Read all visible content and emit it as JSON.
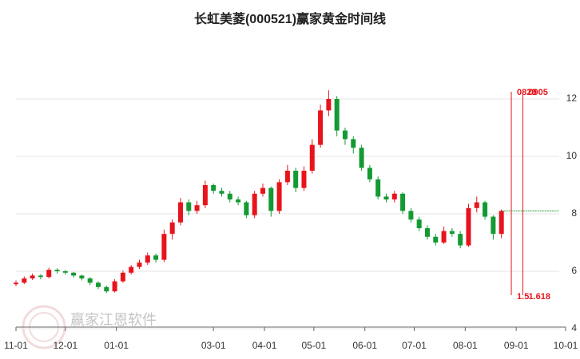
{
  "chart_data": {
    "type": "candlestick",
    "title": "长虹美菱(000521)赢家黄金时间线",
    "x": [
      "11-01",
      "11-06",
      "11-11",
      "11-16",
      "11-21",
      "11-26",
      "12-01",
      "12-06",
      "12-11",
      "12-16",
      "12-21",
      "12-26",
      "12-31",
      "01-05",
      "01-10",
      "01-15",
      "01-20",
      "01-25",
      "01-30",
      "02-04",
      "02-09",
      "02-14",
      "02-19",
      "02-24",
      "03-01",
      "03-06",
      "03-11",
      "03-16",
      "03-21",
      "03-26",
      "03-31",
      "04-05",
      "04-10",
      "04-15",
      "04-20",
      "04-25",
      "04-30",
      "05-05",
      "05-10",
      "05-15",
      "05-20",
      "05-25",
      "05-30",
      "06-04",
      "06-09",
      "06-14",
      "06-19",
      "06-24",
      "06-29",
      "07-04",
      "07-09",
      "07-14",
      "07-19",
      "07-24",
      "07-29",
      "08-03",
      "08-08",
      "08-13",
      "08-18",
      "08-23"
    ],
    "open": [
      5.55,
      5.6,
      5.75,
      5.85,
      5.8,
      6.05,
      6.0,
      5.95,
      5.85,
      5.75,
      5.6,
      5.45,
      5.3,
      5.65,
      5.95,
      6.15,
      6.3,
      6.55,
      6.4,
      7.3,
      7.7,
      8.4,
      8.1,
      8.3,
      9.0,
      8.8,
      8.7,
      8.5,
      8.4,
      7.95,
      8.7,
      8.9,
      8.1,
      9.1,
      9.5,
      8.9,
      9.5,
      10.4,
      11.6,
      12.0,
      10.9,
      10.6,
      10.3,
      9.6,
      9.2,
      8.6,
      8.5,
      8.7,
      8.1,
      7.8,
      7.5,
      7.2,
      7.0,
      7.4,
      7.3,
      6.9,
      8.2,
      8.4,
      7.9,
      7.3
    ],
    "high": [
      5.68,
      5.82,
      5.92,
      5.9,
      6.12,
      6.1,
      6.05,
      5.98,
      5.88,
      5.8,
      5.65,
      5.5,
      5.72,
      6.02,
      6.22,
      6.4,
      6.65,
      6.62,
      7.45,
      7.8,
      8.55,
      8.5,
      8.45,
      9.15,
      9.05,
      8.9,
      8.8,
      8.6,
      8.45,
      8.8,
      9.05,
      8.95,
      9.2,
      9.7,
      9.6,
      9.65,
      10.6,
      11.8,
      12.3,
      12.1,
      11.0,
      10.7,
      10.4,
      9.7,
      9.3,
      8.7,
      8.8,
      8.75,
      8.2,
      7.9,
      7.6,
      7.3,
      7.55,
      7.5,
      7.4,
      8.35,
      8.6,
      8.45,
      7.95,
      8.15
    ],
    "low": [
      5.48,
      5.55,
      5.7,
      5.72,
      5.75,
      5.92,
      5.88,
      5.78,
      5.68,
      5.52,
      5.38,
      5.24,
      5.26,
      5.6,
      5.88,
      6.08,
      6.22,
      6.3,
      6.32,
      7.1,
      7.6,
      7.95,
      8.0,
      8.2,
      8.7,
      8.6,
      8.4,
      8.3,
      7.85,
      7.85,
      8.6,
      7.9,
      8.0,
      9.0,
      8.75,
      8.8,
      9.4,
      10.3,
      11.4,
      10.7,
      10.4,
      10.1,
      9.5,
      9.1,
      8.5,
      8.4,
      8.4,
      8.0,
      7.7,
      7.4,
      7.1,
      6.9,
      6.95,
      7.2,
      6.8,
      6.85,
      8.05,
      7.8,
      7.1,
      7.15
    ],
    "close": [
      5.6,
      5.75,
      5.85,
      5.8,
      6.05,
      6.0,
      5.95,
      5.85,
      5.75,
      5.6,
      5.45,
      5.3,
      5.65,
      5.95,
      6.15,
      6.3,
      6.55,
      6.4,
      7.3,
      7.7,
      8.4,
      8.1,
      8.3,
      9.0,
      8.8,
      8.7,
      8.5,
      8.4,
      7.95,
      8.7,
      8.9,
      8.1,
      9.1,
      9.5,
      8.9,
      9.5,
      10.4,
      11.6,
      12.0,
      10.9,
      10.6,
      10.3,
      9.6,
      9.2,
      8.6,
      8.5,
      8.7,
      8.1,
      7.8,
      7.5,
      7.2,
      7.0,
      7.4,
      7.3,
      6.9,
      8.2,
      8.4,
      7.9,
      7.3,
      8.1
    ],
    "up_color": "#e8141c",
    "down_color": "#139a33",
    "ylim": [
      4,
      14
    ],
    "yticks": [
      4,
      6,
      8,
      10,
      12
    ],
    "xticks": [
      "11-01",
      "12-01",
      "01-01",
      "03-01",
      "04-01",
      "05-01",
      "06-01",
      "07-01",
      "08-01",
      "09-01",
      "10-01"
    ],
    "time_lines": [
      {
        "date": "08-29",
        "label": "0829",
        "ratio": 1.5
      },
      {
        "date": "09-05",
        "label": "0905",
        "ratio": 1.618
      }
    ],
    "time_line_color": "#e8141c",
    "watermark": "赢家江恩软件"
  }
}
